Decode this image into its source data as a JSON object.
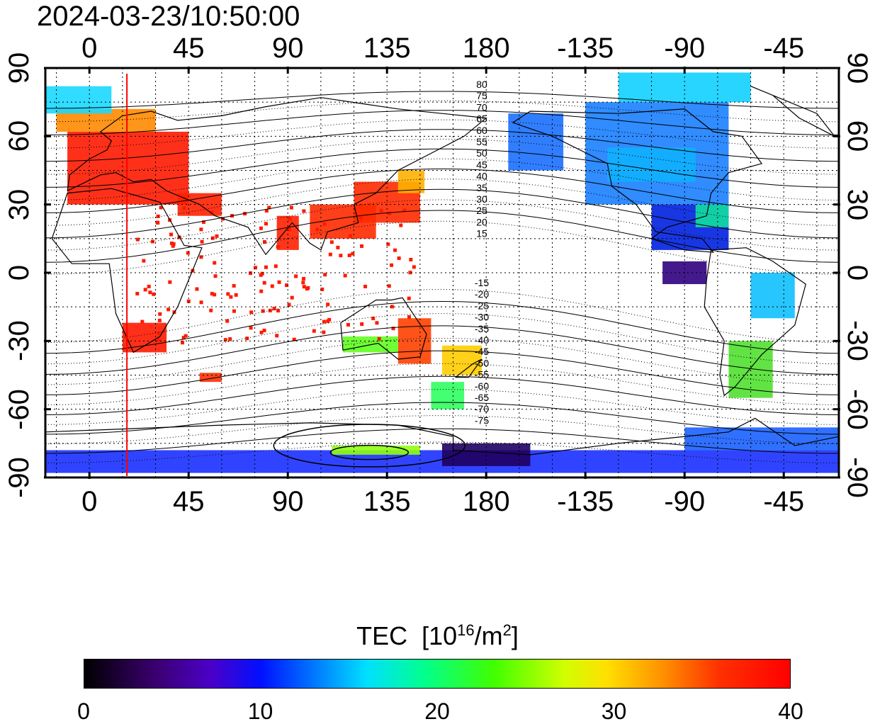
{
  "timestamp": "2024-03-23/10:50:00",
  "axes": {
    "lon_ticks": [
      "0",
      "45",
      "90",
      "135",
      "180",
      "-135",
      "-90",
      "-45"
    ],
    "lat_ticks": [
      "90",
      "60",
      "30",
      "0",
      "-30",
      "-60",
      "-90"
    ]
  },
  "map": {
    "central_longitude": 160,
    "lon_range": [
      -20,
      340
    ],
    "lat_range": [
      -90,
      90
    ],
    "grid": "dotted every 15 deg",
    "contour_labels_north": [
      "80",
      "75",
      "70",
      "65",
      "60",
      "55",
      "50",
      "45",
      "40",
      "35",
      "30",
      "25",
      "20",
      "15"
    ],
    "contour_labels_south": [
      "-15",
      "-20",
      "-25",
      "-30",
      "-35",
      "-40",
      "-45",
      "-50",
      "-55",
      "-60",
      "-65",
      "-70",
      "-75"
    ],
    "marker_line_longitude": 17
  },
  "colorbar": {
    "title": "TEC",
    "unit_prefix": "[10",
    "unit_exp": "16",
    "unit_mid": "/m",
    "unit_sq": "2",
    "unit_suffix": "]",
    "range": [
      0,
      40
    ],
    "tick_labels": [
      "0",
      "10",
      "20",
      "30",
      "40"
    ],
    "colors": [
      "#000000",
      "#4b00c8",
      "#0010ff",
      "#00e0ff",
      "#40ff00",
      "#ffe000",
      "#ff9000",
      "#ff0000"
    ]
  }
}
